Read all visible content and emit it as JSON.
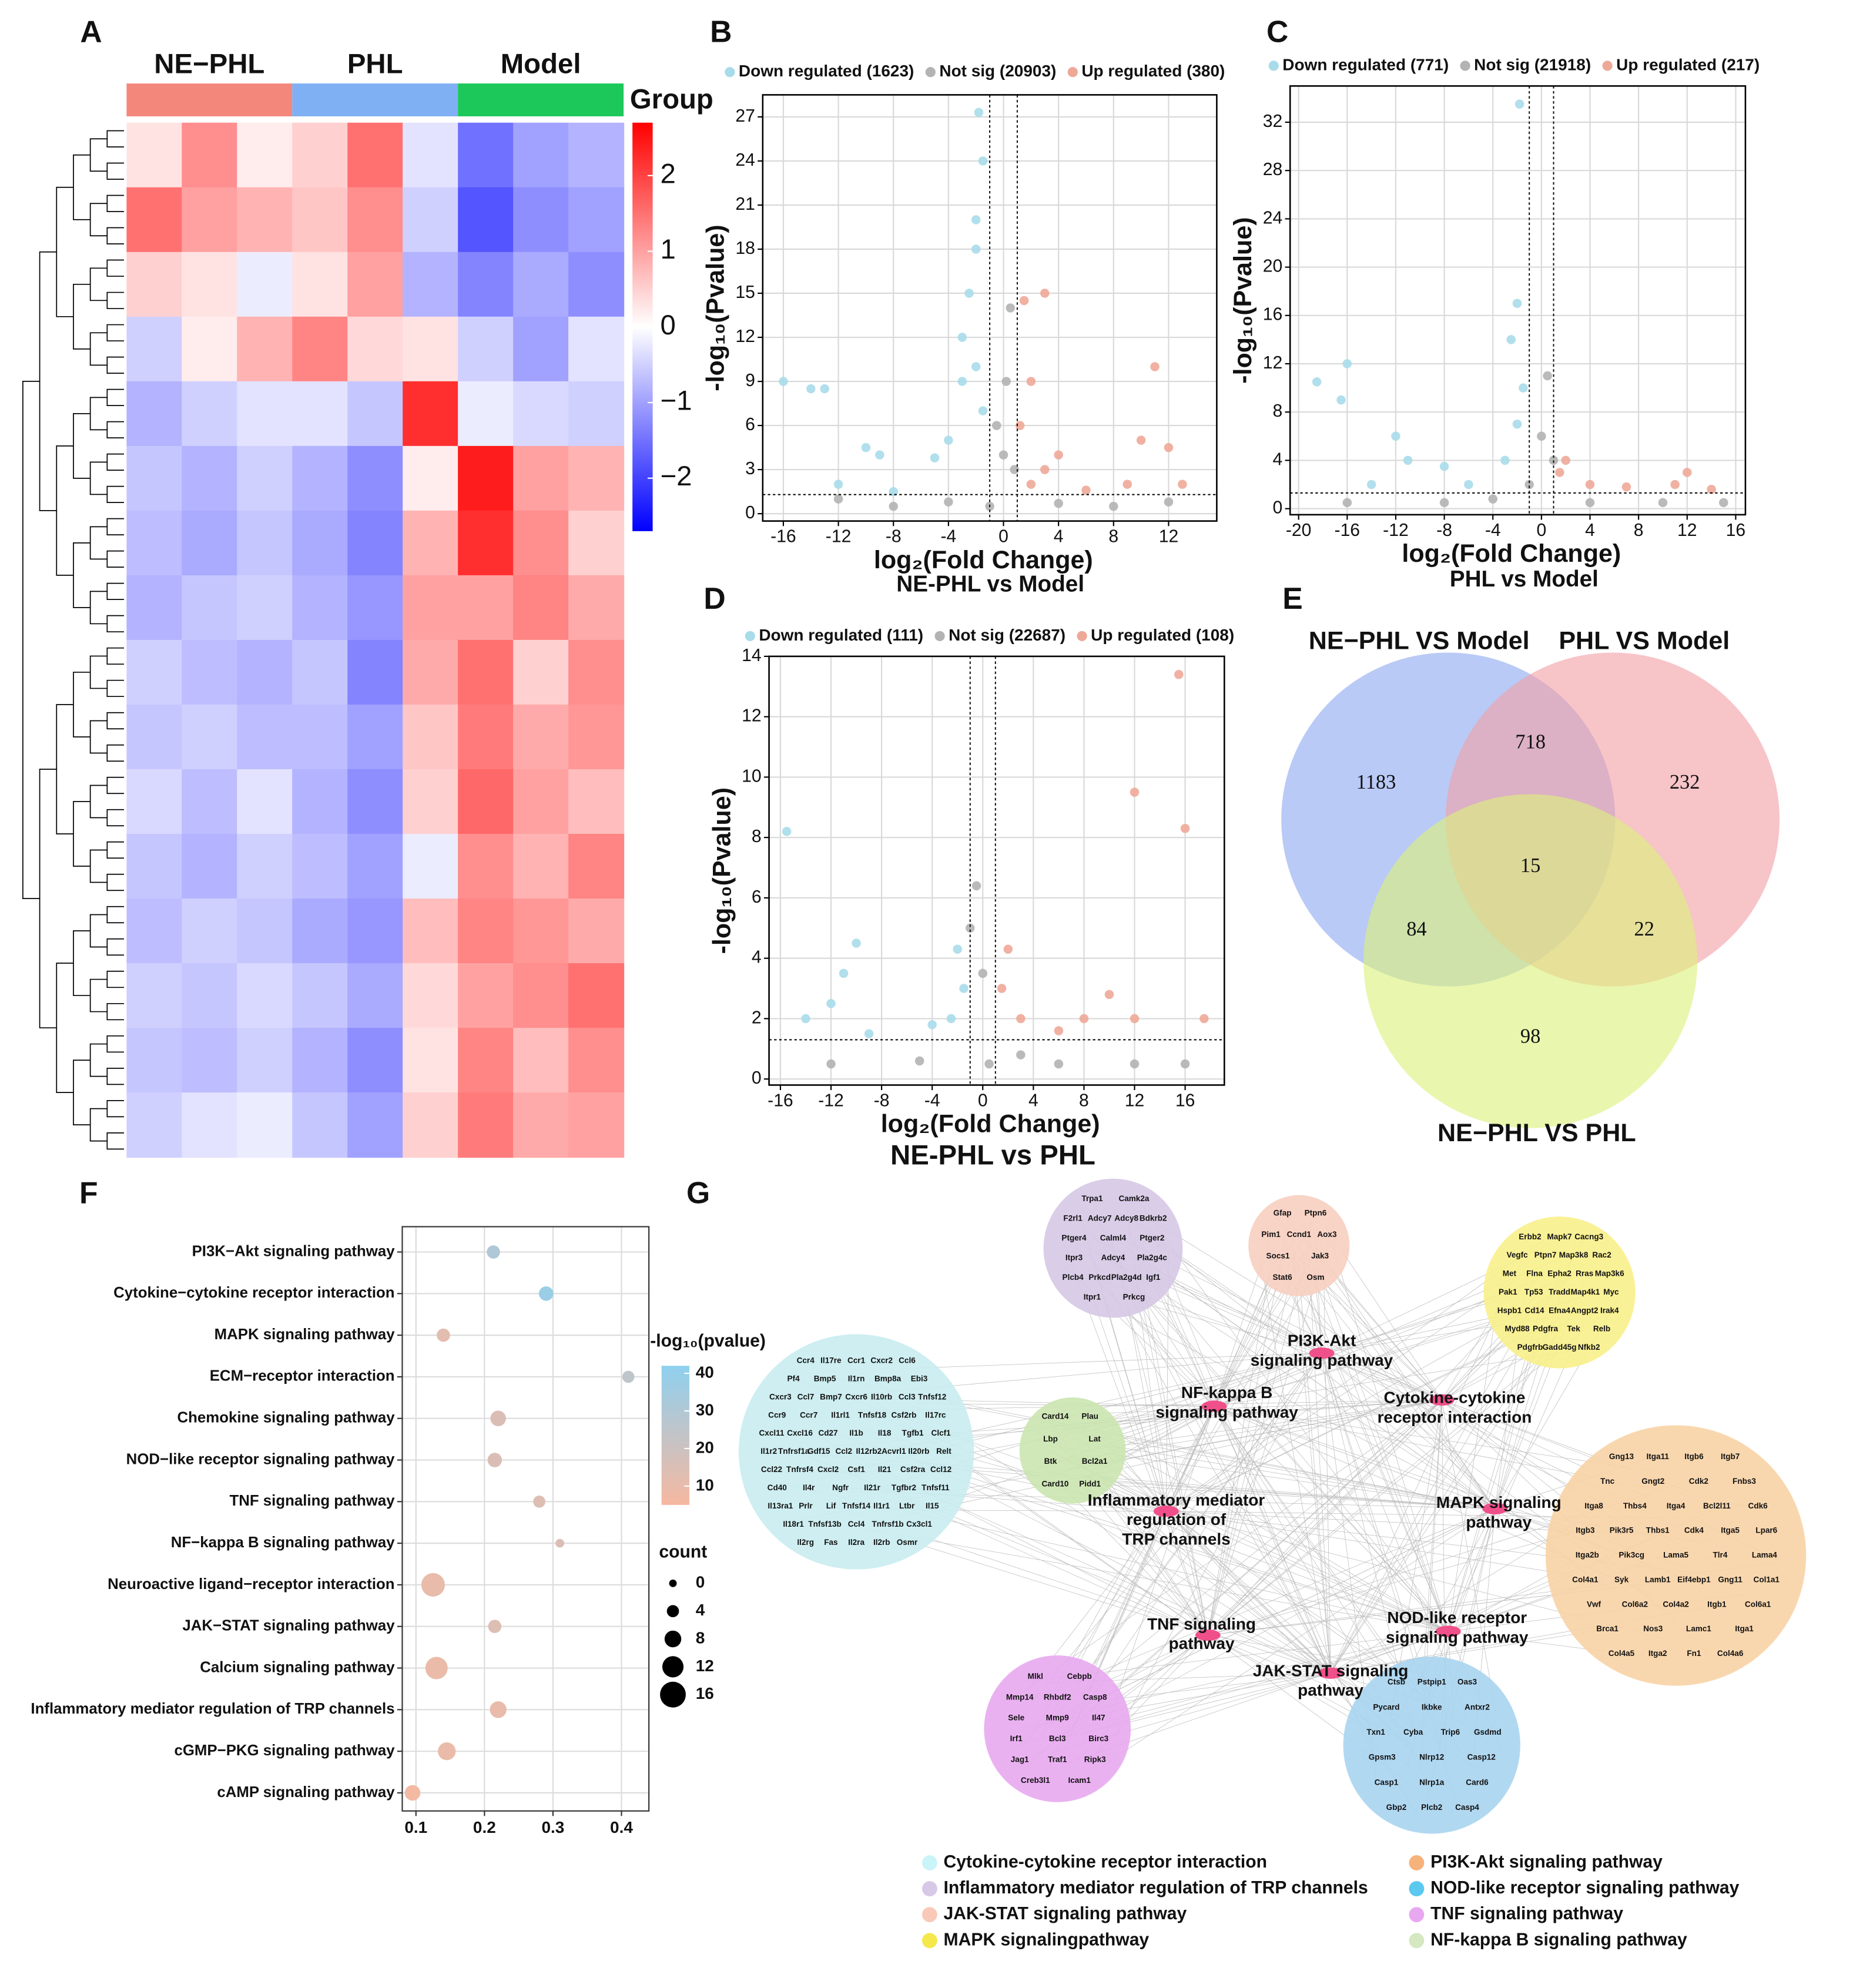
{
  "panel_labels": [
    "A",
    "B",
    "C",
    "D",
    "E",
    "F",
    "G"
  ],
  "chart_data": [
    {
      "type": "heatmap",
      "groups": [
        {
          "name": "NE−PHL",
          "color": "#f4877c"
        },
        {
          "name": "PHL",
          "color": "#7fb0f4"
        },
        {
          "name": "Model",
          "color": "#1dc85a"
        }
      ],
      "legend_title": "Group",
      "colors": [
        "#0000ff",
        "#ffffff",
        "#ff0000"
      ],
      "clim": [
        -2.7,
        2.7
      ],
      "cticks": [
        {
          "value": -2,
          "label": "−2"
        },
        {
          "value": -1,
          "label": "−1"
        },
        0,
        1,
        2
      ],
      "values": [
        [
          0.3,
          1.2,
          0.2,
          0.5,
          1.5,
          -0.3,
          -1.5,
          -1.0,
          -0.8
        ],
        [
          1.5,
          1.0,
          0.8,
          0.6,
          1.2,
          -0.5,
          -1.8,
          -1.2,
          -1.0
        ],
        [
          0.5,
          0.3,
          -0.2,
          0.3,
          1.0,
          -0.8,
          -1.3,
          -0.9,
          -1.2
        ],
        [
          -0.5,
          0.2,
          0.8,
          1.3,
          0.4,
          0.3,
          -0.5,
          -1.0,
          -0.3
        ],
        [
          -0.8,
          -0.5,
          -0.3,
          -0.3,
          -0.6,
          2.2,
          -0.2,
          -0.4,
          -0.5
        ],
        [
          -0.6,
          -0.8,
          -0.5,
          -0.8,
          -1.2,
          0.2,
          2.4,
          1.0,
          0.8
        ],
        [
          -0.7,
          -0.9,
          -0.6,
          -0.9,
          -1.3,
          0.8,
          2.2,
          1.2,
          0.5
        ],
        [
          -0.8,
          -0.6,
          -0.5,
          -0.8,
          -1.1,
          1.0,
          1.0,
          1.3,
          0.9
        ],
        [
          -0.5,
          -0.7,
          -0.8,
          -0.6,
          -1.3,
          0.9,
          1.5,
          0.5,
          1.2
        ],
        [
          -0.6,
          -0.5,
          -0.7,
          -0.7,
          -1.0,
          0.6,
          1.4,
          0.9,
          1.1
        ],
        [
          -0.4,
          -0.7,
          -0.3,
          -0.8,
          -1.2,
          0.5,
          1.6,
          1.0,
          0.7
        ],
        [
          -0.6,
          -0.8,
          -0.5,
          -0.7,
          -1.0,
          -0.2,
          1.2,
          0.8,
          1.3
        ],
        [
          -0.7,
          -0.5,
          -0.6,
          -0.9,
          -1.1,
          0.7,
          1.3,
          1.1,
          0.9
        ],
        [
          -0.5,
          -0.6,
          -0.4,
          -0.6,
          -0.9,
          0.4,
          1.0,
          1.2,
          1.5
        ],
        [
          -0.6,
          -0.7,
          -0.5,
          -0.8,
          -1.2,
          0.3,
          1.3,
          0.7,
          1.2
        ],
        [
          -0.5,
          -0.3,
          -0.2,
          -0.6,
          -1.0,
          0.5,
          1.4,
          0.9,
          1.0
        ]
      ]
    },
    {
      "type": "scatter",
      "x_label": "log₂(Fold Change)",
      "y_label": "-log₁₀(Pvalue)",
      "subtitle": "NE-PHL vs Model",
      "xlim": [
        -17.5,
        15.5
      ],
      "xticks": [
        -16,
        -12,
        -8,
        -4,
        0,
        4,
        8,
        12
      ],
      "ylim": [
        -0.5,
        28.5
      ],
      "yticks": [
        0,
        3,
        6,
        9,
        12,
        15,
        18,
        21,
        24,
        27
      ],
      "grid": true,
      "vlines": [
        -1,
        1
      ],
      "hline": 1.3,
      "series": [
        {
          "name": "Down regulated (1623)",
          "color": "#a8dcea",
          "x": [
            -16,
            -14,
            -13,
            -10,
            -9,
            -5,
            -3,
            -2.5,
            -2,
            -1.5,
            -1.8,
            -2,
            -3,
            -1.5,
            -12,
            -8,
            -4,
            -2
          ],
          "values": [
            9,
            8.5,
            8.5,
            4.5,
            4,
            3.8,
            9,
            15,
            20,
            24,
            27.3,
            18,
            12,
            7,
            2,
            1.5,
            5,
            10
          ]
        },
        {
          "name": "Not sig (20903)",
          "color": "#b3b3b3",
          "x": [
            -12,
            -8,
            -4,
            -1,
            0.2,
            0.5,
            0,
            0.8,
            4,
            8,
            12,
            -0.5
          ],
          "values": [
            1,
            0.5,
            0.8,
            0.5,
            9,
            14,
            4,
            3,
            0.7,
            0.5,
            0.8,
            6
          ]
        },
        {
          "name": "Up regulated (380)",
          "color": "#eea898",
          "x": [
            1.5,
            3,
            2,
            1.2,
            4,
            3,
            11,
            10,
            12,
            13,
            9,
            6,
            2
          ],
          "values": [
            14.5,
            15,
            9,
            6,
            4,
            3,
            10,
            5,
            4.5,
            2,
            2,
            1.6,
            2
          ]
        }
      ]
    },
    {
      "type": "scatter",
      "x_label": "log₂(Fold Change)",
      "y_label": "-log₁₀(Pvalue)",
      "subtitle": "PHL vs Model",
      "xlim": [
        -20.7,
        16.8
      ],
      "xticks": [
        -20,
        -16,
        -12,
        -8,
        -4,
        0,
        4,
        8,
        12,
        16
      ],
      "ylim": [
        -0.5,
        35
      ],
      "yticks": [
        0,
        4,
        8,
        12,
        16,
        20,
        24,
        28,
        32
      ],
      "grid": true,
      "vlines": [
        -1,
        1
      ],
      "hline": 1.3,
      "series": [
        {
          "name": "Down regulated (771)",
          "color": "#a8dcea",
          "x": [
            -18.5,
            -16,
            -16.5,
            -12,
            -11,
            -8,
            -2,
            -2.5,
            -1.5,
            -2,
            -3,
            -1.8,
            -14,
            -6
          ],
          "values": [
            10.5,
            12,
            9,
            6,
            4,
            3.5,
            17,
            14,
            10,
            7,
            4,
            33.5,
            2,
            2
          ]
        },
        {
          "name": "Not sig (21918)",
          "color": "#b3b3b3",
          "x": [
            -16,
            -8,
            -1,
            0.5,
            0,
            1,
            4,
            10,
            15,
            -4
          ],
          "values": [
            0.5,
            0.5,
            2,
            11,
            6,
            4,
            0.5,
            0.5,
            0.5,
            0.8
          ]
        },
        {
          "name": "Up regulated (217)",
          "color": "#eea898",
          "x": [
            2,
            1.5,
            4,
            12,
            11,
            7,
            14
          ],
          "values": [
            4,
            3,
            2,
            3,
            2,
            1.8,
            1.6
          ]
        }
      ]
    },
    {
      "type": "scatter",
      "x_label": "log₂(Fold Change)",
      "y_label": "-log₁₀(Pvalue)",
      "subtitle": "NE-PHL vs PHL",
      "xlim": [
        -16.9,
        19.1
      ],
      "xticks": [
        -16,
        -12,
        -8,
        -4,
        0,
        4,
        8,
        12,
        16
      ],
      "ylim": [
        -0.2,
        14
      ],
      "yticks": [
        0,
        2,
        4,
        6,
        8,
        10,
        12,
        14
      ],
      "grid": true,
      "vlines": [
        -1,
        1
      ],
      "hline": 1.3,
      "series": [
        {
          "name": "Down regulated (111)",
          "color": "#a8dcea",
          "x": [
            -15.5,
            -10,
            -11,
            -12,
            -14,
            -9,
            -2,
            -1.5,
            -2.5,
            -4
          ],
          "values": [
            8.2,
            4.5,
            3.5,
            2.5,
            2,
            1.5,
            4.3,
            3,
            2,
            1.8
          ]
        },
        {
          "name": "Not sig (22687)",
          "color": "#b3b3b3",
          "x": [
            -0.5,
            -1,
            0,
            -12,
            -5,
            0.5,
            6,
            12,
            16,
            3
          ],
          "values": [
            6.4,
            5,
            3.5,
            0.5,
            0.6,
            0.5,
            0.5,
            0.5,
            0.5,
            0.8
          ]
        },
        {
          "name": "Up regulated (108)",
          "color": "#eea898",
          "x": [
            15.5,
            12,
            16,
            2,
            1.5,
            3,
            10,
            8,
            12,
            17.5,
            6
          ],
          "values": [
            13.4,
            9.5,
            8.3,
            4.3,
            3,
            2,
            2.8,
            2,
            2,
            2,
            1.6
          ]
        }
      ]
    },
    {
      "type": "venn",
      "sets": [
        {
          "name": "NE−PHL VS Model",
          "color": "#8eaaf0"
        },
        {
          "name": "PHL VS Model",
          "color": "#f2a0a6"
        },
        {
          "name": "NE−PHL VS PHL",
          "color": "#dcf07a"
        }
      ],
      "values": [
        1183,
        718,
        232,
        15,
        84,
        22,
        98
      ]
    },
    {
      "type": "dot",
      "categories": [
        "PI3K−Akt signaling pathway",
        "Cytokine−cytokine receptor interaction",
        "MAPK signaling pathway",
        "ECM−receptor interaction",
        "Chemokine signaling pathway",
        "NOD−like receptor signaling pathway",
        "TNF signaling pathway",
        "NF−kappa B signaling pathway",
        "Neuroactive ligand−receptor interaction",
        "JAK−STAT signaling pathway",
        "Calcium signaling pathway",
        "Inflammatory mediator regulation of TRP channels",
        "cGMP−PKG signaling pathway",
        "cAMP signaling pathway"
      ],
      "values": [
        0.213,
        0.29,
        0.14,
        0.41,
        0.22,
        0.215,
        0.28,
        0.31,
        0.125,
        0.215,
        0.13,
        0.22,
        0.145,
        0.095
      ],
      "color_values": [
        30,
        38,
        12,
        25,
        15,
        15,
        14,
        15,
        10,
        14,
        9,
        10,
        9,
        6
      ],
      "sizes": [
        5,
        6,
        5,
        4,
        7,
        6,
        4,
        1,
        14,
        5,
        13,
        8,
        9,
        7
      ],
      "xlim": [
        0.08,
        0.44
      ],
      "xticks": [
        0.1,
        0.2,
        0.3,
        0.4
      ],
      "grid": true,
      "color_label": "-log₁₀(pvalue)",
      "clim": [
        5,
        42
      ],
      "cticks": [
        10,
        20,
        30,
        40
      ],
      "ccolors": [
        "#f6b8a0",
        "#8fd0ef"
      ],
      "size_label": "count",
      "size_ticks": [
        0,
        4,
        8,
        12,
        16
      ]
    }
  ],
  "network": {
    "hub_color": "#f0508a",
    "hubs": [
      {
        "label": [
          "PI3K-Akt",
          "signaling pathway"
        ]
      },
      {
        "label": [
          "NF-kappa B",
          "signaling pathway"
        ]
      },
      {
        "label": [
          "Cytokine-cytokine",
          "receptor interaction"
        ]
      },
      {
        "label": [
          "Inflammatory mediator",
          "regulation of",
          "TRP channels"
        ]
      },
      {
        "label": [
          "MAPK signaling",
          "pathway"
        ]
      },
      {
        "label": [
          "TNF signaling",
          "pathway"
        ]
      },
      {
        "label": [
          "NOD-like receptor",
          "signaling pathway"
        ]
      },
      {
        "label": [
          "JAK-STAT signaling",
          "pathway"
        ]
      }
    ],
    "clusters": [
      {
        "color": "#c9ecf0",
        "genes": [
          "Ccr4",
          "Il17re",
          "Ccr1",
          "Cxcr2",
          "Ccl6",
          "Pf4",
          "Bmp5",
          "Il1rn",
          "Bmp8a",
          "Ebi3",
          "Cxcr3",
          "Ccl7",
          "Bmp7",
          "Cxcr6",
          "Il10rb",
          "Ccl3",
          "Tnfsf12",
          "Ccr9",
          "Ccr7",
          "Il1rl1",
          "Tnfsf18",
          "Csf2rb",
          "Il17rc",
          "Cxcl11",
          "Cxcl16",
          "Cd27",
          "Il1b",
          "Il18",
          "Tgfb1",
          "Clcf1",
          "Il1r2",
          "Tnfrsf1a",
          "Gdf15",
          "Ccl2",
          "Il12rb2",
          "Acvrl1",
          "Il20rb",
          "Relt",
          "Ccl22",
          "Tnfrsf4",
          "Cxcl2",
          "Csf1",
          "Il21",
          "Csf2ra",
          "Ccl12",
          "Cd40",
          "Il4r",
          "Ngfr",
          "Il21r",
          "Tgfbr2",
          "Tnfsf11",
          "Il13ra1",
          "Prlr",
          "Lif",
          "Tnfsf14",
          "Il1r1",
          "Ltbr",
          "Il15",
          "Il18r1",
          "Tnfsf13b",
          "Ccl4",
          "Tnfrsf1b",
          "Cx3cl1",
          "Il2rg",
          "Fas",
          "Il2ra",
          "Il2rb",
          "Osmr"
        ]
      },
      {
        "color": "#d6c8e6",
        "genes": [
          "Trpa1",
          "Camk2a",
          "F2rl1",
          "Adcy7",
          "Adcy8",
          "Bdkrb2",
          "Ptger4",
          "Calml4",
          "Ptger2",
          "Itpr3",
          "Adcy4",
          "Pla2g4c",
          "Plcb4",
          "Prkcd",
          "Pla2g4d",
          "Igf1",
          "Itpr1",
          "Prkcg"
        ]
      },
      {
        "color": "#f7cfc0",
        "genes": [
          "Gfap",
          "Ptpn6",
          "Pim1",
          "Ccnd1",
          "Aox3",
          "Socs1",
          "Jak3",
          "Stat6",
          "Osm"
        ]
      },
      {
        "color": "#f8f08a",
        "genes": [
          "Erbb2",
          "Mapk7",
          "Cacng3",
          "Vegfc",
          "Ptpn7",
          "Map3k8",
          "Rac2",
          "Met",
          "Flna",
          "Epha2",
          "Rras",
          "Map3k6",
          "Pak1",
          "Tp53",
          "Tradd",
          "Map4k1",
          "Myc",
          "Hspb1",
          "Cd14",
          "Efna4",
          "Angpt2",
          "Irak4",
          "Myd88",
          "Pdgfra",
          "Tek",
          "Relb",
          "Pdgfrb",
          "Gadd45g",
          "Nfkb2"
        ]
      },
      {
        "color": "#cbe6b0",
        "genes": [
          "Card14",
          "Plau",
          "Lbp",
          "Lat",
          "Btk",
          "Bcl2a1",
          "Card10",
          "Pidd1"
        ]
      },
      {
        "color": "#f8d3a5",
        "genes": [
          "Gng13",
          "Itga11",
          "Itgb6",
          "Itgb7",
          "Tnc",
          "Gngt2",
          "Cdk2",
          "Fnbs3",
          "Itga8",
          "Thbs4",
          "Itga4",
          "Bcl2l11",
          "Cdk6",
          "Itgb3",
          "Pik3r5",
          "Thbs1",
          "Cdk4",
          "Itga5",
          "Lpar6",
          "Itga2b",
          "Pik3cg",
          "Lama5",
          "Tlr4",
          "Lama4",
          "Col4a1",
          "Syk",
          "Lamb1",
          "Eif4ebp1",
          "Gng11",
          "Col1a1",
          "Vwf",
          "Col6a2",
          "Col4a2",
          "Itgb1",
          "Col6a1",
          "Brca1",
          "Nos3",
          "Lamc1",
          "Itga1",
          "Col4a5",
          "Itga2",
          "Fn1",
          "Col4a6"
        ]
      },
      {
        "color": "#e8a8f0",
        "genes": [
          "Mlkl",
          "Cebpb",
          "Mmp14",
          "Rhbdf2",
          "Casp8",
          "Sele",
          "Mmp9",
          "Il47",
          "Irf1",
          "Bcl3",
          "Birc3",
          "Jag1",
          "Traf1",
          "Ripk3",
          "Creb3l1",
          "Icam1"
        ]
      },
      {
        "color": "#a9d4f0",
        "genes": [
          "Ctsb",
          "Pstpip1",
          "Oas3",
          "Pycard",
          "Ikbke",
          "Antxr2",
          "Txn1",
          "Cyba",
          "Trip6",
          "Gsdmd",
          "Gpsm3",
          "Nlrp12",
          "Casp12",
          "Casp1",
          "Nlrp1a",
          "Card6",
          "Gbp2",
          "Plcb2",
          "Casp4"
        ]
      }
    ],
    "legend": [
      {
        "label": "Cytokine-cytokine receptor interaction",
        "color": "#c9f4f8"
      },
      {
        "label": "Inflammatory mediator regulation of TRP channels",
        "color": "#d8c8e8"
      },
      {
        "label": "JAK-STAT signaling pathway",
        "color": "#f9c9b8"
      },
      {
        "label": "MAPK signalingpathway",
        "color": "#f5e84a"
      },
      {
        "label": "PI3K-Akt signaling pathway",
        "color": "#f5b27a"
      },
      {
        "label": "NOD-like receptor signaling pathway",
        "color": "#5bc8ef"
      },
      {
        "label": "TNF signaling pathway",
        "color": "#e8a8f0"
      },
      {
        "label": "NF-kappa B signaling pathway",
        "color": "#d5e8c0"
      }
    ]
  }
}
